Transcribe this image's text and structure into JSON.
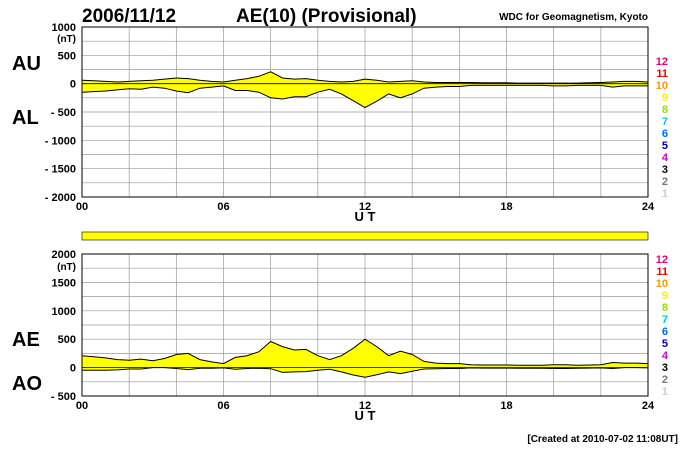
{
  "header": {
    "date": "2006/11/12",
    "title": "AE(10) (Provisional)",
    "source": "WDC for Geomagnetism, Kyoto"
  },
  "footer": {
    "created": "[Created at 2010-07-02 11:08UT]"
  },
  "colors": {
    "fill": "#ffff00",
    "grid": "#9a9a9a",
    "line": "#000000"
  },
  "station_count_labels": [
    {
      "text": "12",
      "color": "#e6007e"
    },
    {
      "text": "11",
      "color": "#e60000"
    },
    {
      "text": "10",
      "color": "#ff9900"
    },
    {
      "text": "9",
      "color": "#ffee00"
    },
    {
      "text": "8",
      "color": "#99dd00"
    },
    {
      "text": "7",
      "color": "#00ccdd"
    },
    {
      "text": "6",
      "color": "#0066ff"
    },
    {
      "text": "5",
      "color": "#0000aa"
    },
    {
      "text": "4",
      "color": "#cc00cc"
    },
    {
      "text": "3",
      "color": "#000000"
    },
    {
      "text": "2",
      "color": "#777777"
    },
    {
      "text": "1",
      "color": "#cccccc"
    }
  ],
  "bar_strip": {
    "color": "#ffff00"
  },
  "chart_data": [
    {
      "type": "area",
      "upper_label": "AU",
      "lower_label": "AL",
      "ylabel": "(nT)",
      "xlabel": "U T",
      "ylim": [
        -2000,
        1000
      ],
      "yticks": [
        1000,
        500,
        0,
        -500,
        -1000,
        -1500,
        -2000
      ],
      "ytick_labels": [
        "1000",
        "500",
        "0",
        "- 500",
        "- 1000",
        "- 1500",
        "- 2000"
      ],
      "xlim": [
        0,
        24
      ],
      "xticks": [
        0,
        6,
        12,
        18,
        24
      ],
      "xtick_labels": [
        "00",
        "06",
        "12",
        "18",
        "24"
      ],
      "grid": true,
      "x_hours": [
        0,
        0.5,
        1,
        1.5,
        2,
        2.5,
        3,
        3.5,
        4,
        4.5,
        5,
        5.5,
        6,
        6.5,
        7,
        7.5,
        8,
        8.5,
        9,
        9.5,
        10,
        10.5,
        11,
        11.5,
        12,
        12.5,
        13,
        13.5,
        14,
        14.5,
        15,
        15.5,
        16,
        16.5,
        17,
        17.5,
        18,
        18.5,
        19,
        19.5,
        20,
        20.5,
        21,
        21.5,
        22,
        22.5,
        23,
        23.5,
        24
      ],
      "series": [
        {
          "name": "AU",
          "values": [
            60,
            50,
            40,
            30,
            40,
            50,
            60,
            80,
            100,
            90,
            60,
            40,
            30,
            60,
            90,
            130,
            210,
            100,
            80,
            90,
            60,
            40,
            30,
            40,
            80,
            60,
            30,
            40,
            50,
            30,
            20,
            20,
            20,
            20,
            15,
            15,
            15,
            10,
            10,
            10,
            10,
            10,
            10,
            15,
            20,
            30,
            40,
            40,
            30
          ]
        },
        {
          "name": "AL",
          "values": [
            -150,
            -140,
            -130,
            -110,
            -90,
            -100,
            -60,
            -80,
            -130,
            -160,
            -80,
            -60,
            -40,
            -120,
            -120,
            -150,
            -250,
            -270,
            -230,
            -230,
            -150,
            -100,
            -180,
            -300,
            -420,
            -310,
            -180,
            -250,
            -180,
            -80,
            -60,
            -50,
            -50,
            -30,
            -30,
            -30,
            -30,
            -30,
            -30,
            -30,
            -40,
            -40,
            -30,
            -30,
            -30,
            -60,
            -40,
            -40,
            -40
          ]
        }
      ]
    },
    {
      "type": "area",
      "upper_label": "AE",
      "lower_label": "AO",
      "ylabel": "(nT)",
      "xlabel": "U T",
      "ylim": [
        -500,
        2000
      ],
      "yticks": [
        2000,
        1500,
        1000,
        500,
        0,
        -500
      ],
      "ytick_labels": [
        "2000",
        "1500",
        "1000",
        "500",
        "0",
        "- 500"
      ],
      "xlim": [
        0,
        24
      ],
      "xticks": [
        0,
        6,
        12,
        18,
        24
      ],
      "xtick_labels": [
        "00",
        "06",
        "12",
        "18",
        "24"
      ],
      "grid": true,
      "x_hours": [
        0,
        0.5,
        1,
        1.5,
        2,
        2.5,
        3,
        3.5,
        4,
        4.5,
        5,
        5.5,
        6,
        6.5,
        7,
        7.5,
        8,
        8.5,
        9,
        9.5,
        10,
        10.5,
        11,
        11.5,
        12,
        12.5,
        13,
        13.5,
        14,
        14.5,
        15,
        15.5,
        16,
        16.5,
        17,
        17.5,
        18,
        18.5,
        19,
        19.5,
        20,
        20.5,
        21,
        21.5,
        22,
        22.5,
        23,
        23.5,
        24
      ],
      "series": [
        {
          "name": "AE",
          "values": [
            210,
            190,
            170,
            140,
            130,
            150,
            120,
            160,
            230,
            250,
            140,
            100,
            70,
            180,
            210,
            280,
            460,
            370,
            310,
            320,
            210,
            140,
            210,
            340,
            500,
            370,
            210,
            290,
            230,
            110,
            80,
            70,
            70,
            50,
            45,
            45,
            45,
            40,
            40,
            40,
            50,
            50,
            40,
            45,
            50,
            90,
            80,
            80,
            70
          ]
        },
        {
          "name": "AO",
          "values": [
            -45,
            -45,
            -45,
            -40,
            -25,
            -25,
            0,
            0,
            -15,
            -35,
            -10,
            -10,
            -5,
            -30,
            -15,
            -10,
            -20,
            -85,
            -75,
            -70,
            -45,
            -30,
            -75,
            -130,
            -170,
            -125,
            -75,
            -105,
            -65,
            -25,
            -20,
            -15,
            -15,
            -5,
            -8,
            -8,
            -8,
            -10,
            -10,
            -10,
            -15,
            -15,
            -10,
            -8,
            -5,
            -15,
            0,
            0,
            -5
          ]
        }
      ]
    }
  ]
}
